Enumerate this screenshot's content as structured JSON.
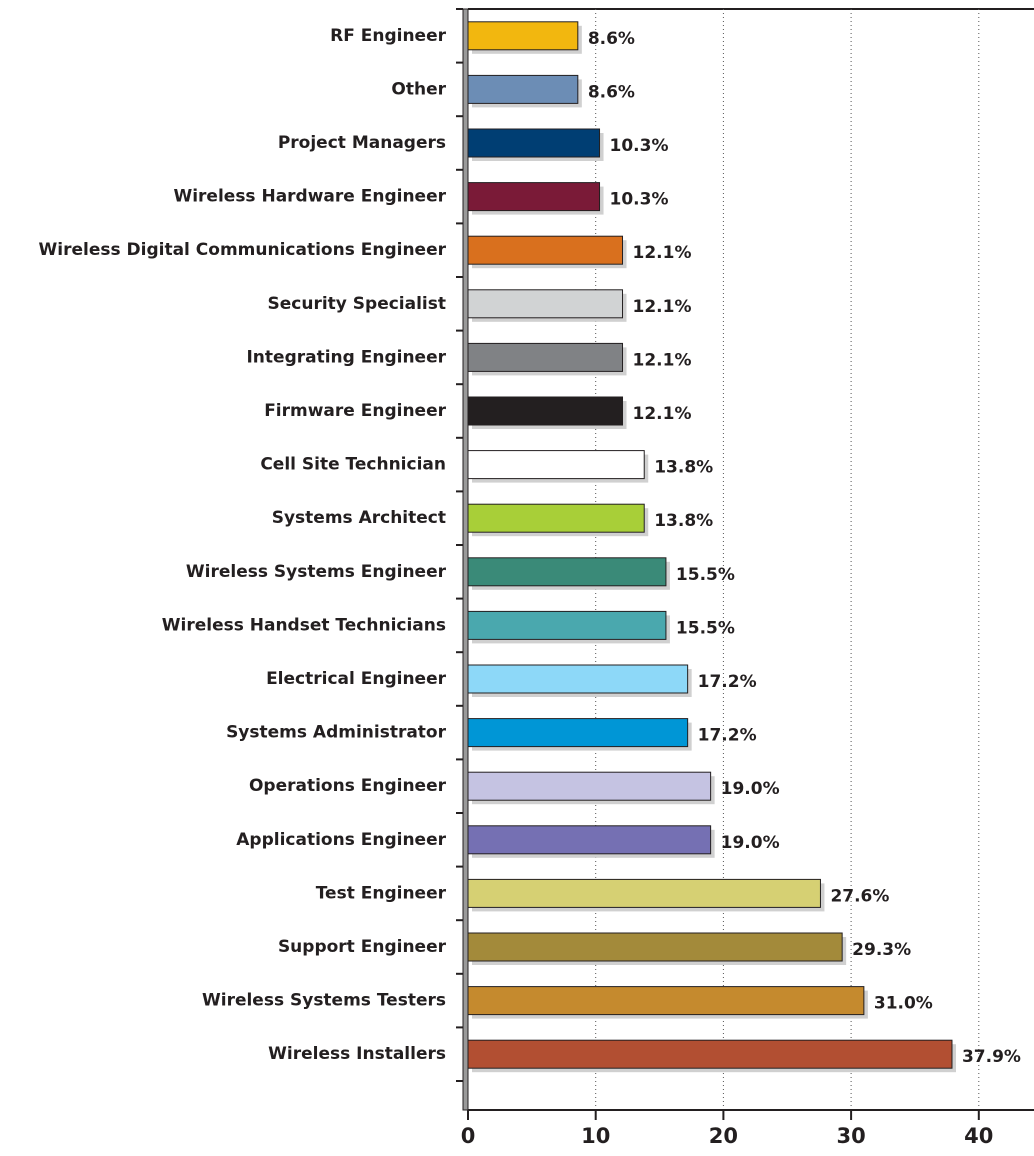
{
  "chart_data": {
    "type": "bar",
    "orientation": "horizontal",
    "categories": [
      "RF Engineer",
      "Other",
      "Project Managers",
      "Wireless Hardware Engineer",
      "Wireless Digital Communications Engineer",
      "Security Specialist",
      "Integrating Engineer",
      "Firmware Engineer",
      "Cell Site Technician",
      "Systems Architect",
      "Wireless Systems Engineer",
      "Wireless Handset Technicians",
      "Electrical Engineer",
      "Systems Administrator",
      "Operations Engineer",
      "Applications Engineer",
      "Test Engineer",
      "Support Engineer",
      "Wireless Systems Testers",
      "Wireless Installers"
    ],
    "values": [
      8.6,
      8.6,
      10.3,
      10.3,
      12.1,
      12.1,
      12.1,
      12.1,
      13.8,
      13.8,
      15.5,
      15.5,
      17.2,
      17.2,
      19.0,
      19.0,
      27.6,
      29.3,
      31.0,
      37.9
    ],
    "value_labels": [
      "8.6%",
      "8.6%",
      "10.3%",
      "10.3%",
      "12.1%",
      "12.1%",
      "12.1%",
      "12.1%",
      "13.8%",
      "13.8%",
      "15.5%",
      "15.5%",
      "17.2%",
      "17.2%",
      "19.0%",
      "19.0%",
      "27.6%",
      "29.3%",
      "31.0%",
      "37.9%"
    ],
    "colors": [
      "#f2b70f",
      "#6c8db5",
      "#003e73",
      "#7a1a37",
      "#d9701e",
      "#d1d3d4",
      "#808285",
      "#231f20",
      "#ffffff",
      "#a8cf38",
      "#3a8a78",
      "#4aa8ae",
      "#8dd8f8",
      "#0096d6",
      "#c5c3e2",
      "#7570b3",
      "#d6d073",
      "#a38a3a",
      "#c58a2e",
      "#b24f32"
    ],
    "xlim": [
      0,
      44
    ],
    "xticks": [
      0,
      10,
      20,
      30,
      40
    ],
    "grid": true
  }
}
